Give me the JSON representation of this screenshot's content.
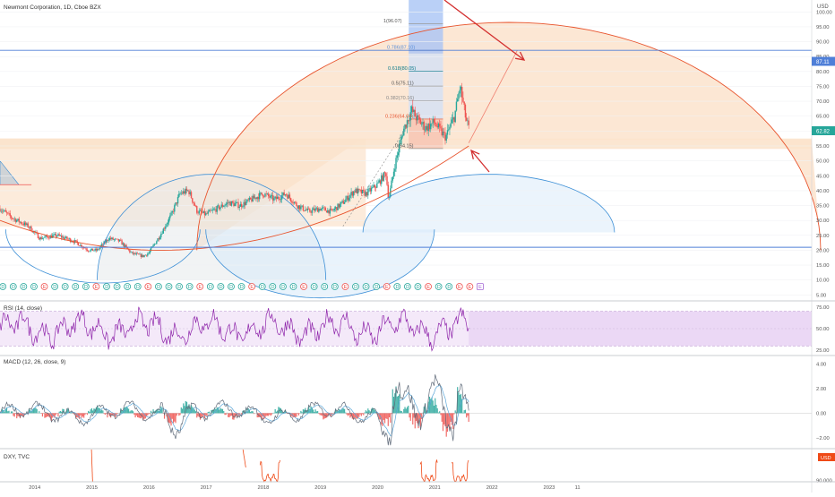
{
  "header": {
    "title": "Newmont Corporation, 1D, Cboe BZX",
    "currency": "USD"
  },
  "colors": {
    "up": "#26a69a",
    "down": "#ef5350",
    "arc_orange": "#e8542d",
    "arc_orange_fill": "#fbe3cc",
    "arc_blue": "#3c8fd6",
    "arc_blue_fill": "#d7e9f9",
    "hline_blue": "#4f7fd8",
    "rsi": "#8e24aa",
    "rsi_band": "#f1e4f7",
    "macd": "#606b7a",
    "signal": "#5aa6d8",
    "dxy": "#ef4a17",
    "fib_box": "#3b6be0",
    "arrow": "#d32f2f",
    "axis_text": "#555555"
  },
  "chart_data": [
    {
      "type": "candlestick",
      "title": "Newmont Corporation, 1D, Cboe BZX",
      "xlabel": "",
      "ylabel": "USD",
      "ylim": [
        3,
        104
      ],
      "y_ticks": [
        100,
        95,
        90,
        85,
        80,
        75,
        70,
        65,
        60,
        55,
        50,
        45,
        40,
        35,
        30,
        25,
        20,
        15,
        10,
        5
      ],
      "x_ticks": [
        "2014",
        "2015",
        "2016",
        "2017",
        "2018",
        "2019",
        "2020",
        "2021",
        "2022",
        "2023",
        "11"
      ],
      "x_range": [
        2013.4,
        2027.6
      ],
      "price_path": [
        [
          2013.4,
          34
        ],
        [
          2013.6,
          31
        ],
        [
          2013.9,
          28
        ],
        [
          2014.1,
          24
        ],
        [
          2014.4,
          25
        ],
        [
          2014.7,
          23
        ],
        [
          2014.95,
          20
        ],
        [
          2015.1,
          20
        ],
        [
          2015.3,
          24
        ],
        [
          2015.5,
          23
        ],
        [
          2015.7,
          19
        ],
        [
          2015.9,
          18
        ],
        [
          2016.0,
          19
        ],
        [
          2016.2,
          25
        ],
        [
          2016.4,
          32
        ],
        [
          2016.55,
          39
        ],
        [
          2016.7,
          40
        ],
        [
          2016.85,
          33
        ],
        [
          2017.0,
          32
        ],
        [
          2017.2,
          34
        ],
        [
          2017.4,
          36
        ],
        [
          2017.6,
          35
        ],
        [
          2017.8,
          37
        ],
        [
          2018.0,
          39
        ],
        [
          2018.2,
          37
        ],
        [
          2018.4,
          39
        ],
        [
          2018.6,
          35
        ],
        [
          2018.8,
          33
        ],
        [
          2019.0,
          34
        ],
        [
          2019.2,
          33
        ],
        [
          2019.4,
          36
        ],
        [
          2019.6,
          40
        ],
        [
          2019.8,
          39
        ],
        [
          2020.0,
          42
        ],
        [
          2020.15,
          46
        ],
        [
          2020.2,
          37
        ],
        [
          2020.3,
          48
        ],
        [
          2020.45,
          60
        ],
        [
          2020.6,
          67
        ],
        [
          2020.7,
          64
        ],
        [
          2020.85,
          61
        ],
        [
          2021.0,
          63
        ],
        [
          2021.1,
          60
        ],
        [
          2021.2,
          58
        ],
        [
          2021.35,
          65
        ],
        [
          2021.45,
          75
        ],
        [
          2021.55,
          64
        ],
        [
          2021.6,
          61
        ]
      ],
      "fib_levels": [
        {
          "label": "1(96.07)",
          "value": 96.07
        },
        {
          "label": "0.786(87.10)",
          "value": 87.1
        },
        {
          "label": "0.618(80.05)",
          "value": 80.05
        },
        {
          "label": "0.5(75.11)",
          "value": 75.11
        },
        {
          "label": "0.382(70.16)",
          "value": 70.16
        },
        {
          "label": "0.236(64.04)",
          "value": 64.04
        },
        {
          "label": "0(54.15)",
          "value": 54.15
        }
      ],
      "horizontal_lines": [
        87.11,
        21
      ],
      "last_price": "62.82",
      "line_price": "87.11",
      "annotations": [
        "2 red arrows",
        "arc projections",
        "earnings/dividend markers"
      ],
      "event_markers": [
        "D",
        "D",
        "D",
        "D",
        "E",
        "D",
        "D",
        "D",
        "D",
        "E",
        "D",
        "D",
        "D",
        "D",
        "E",
        "D",
        "D",
        "D",
        "D",
        "E",
        "D",
        "D",
        "D",
        "D",
        "E",
        "D",
        "D",
        "D",
        "D",
        "E",
        "D",
        "D",
        "D",
        "E",
        "D",
        "D",
        "D",
        "E",
        "D",
        "D",
        "D",
        "E",
        "D",
        "D",
        "E",
        "E",
        "E"
      ]
    },
    {
      "type": "line",
      "title": "RSI (14, close)",
      "ylim": [
        20,
        80
      ],
      "y_ticks": [
        75,
        50,
        25
      ],
      "bands": [
        30,
        70
      ],
      "y_tick_labels": [
        "75.00",
        "50.00",
        "25.00"
      ]
    },
    {
      "type": "line",
      "title": "MACD (12, 26, close, 9)",
      "ylim": [
        -2.8,
        4.6
      ],
      "y_ticks": [
        4,
        2,
        0,
        -2
      ],
      "y_tick_labels": [
        "4.00",
        "2.00",
        "0.00",
        "−2.00"
      ]
    },
    {
      "type": "line",
      "title": "DXY, TVC",
      "ylim": [
        89.5,
        103
      ],
      "y_tick_labels": [
        "90.000"
      ],
      "currency": "USD"
    }
  ]
}
